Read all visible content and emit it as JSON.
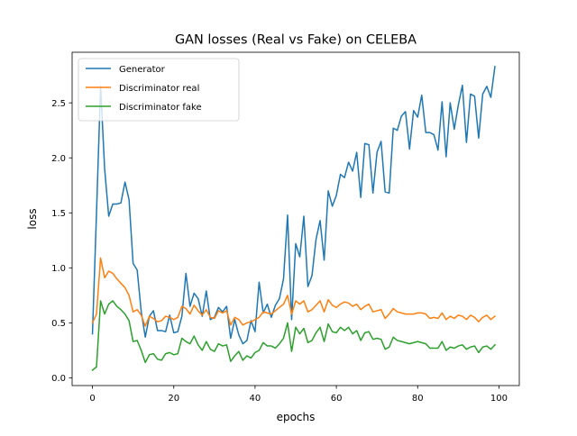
{
  "chart_data": {
    "type": "line",
    "title": "GAN losses (Real vs Fake) on CELEBA",
    "xlabel": "epochs",
    "ylabel": "loss",
    "xlim": [
      -5,
      105
    ],
    "ylim": [
      -0.07,
      2.96
    ],
    "xticks": [
      "0",
      "20",
      "40",
      "60",
      "80",
      "100"
    ],
    "yticks": [
      "0.0",
      "0.5",
      "1.0",
      "1.5",
      "2.0",
      "2.5"
    ],
    "grid": false,
    "legend_position": "top-left",
    "x": [
      0,
      1,
      2,
      3,
      4,
      5,
      6,
      7,
      8,
      9,
      10,
      11,
      12,
      13,
      14,
      15,
      16,
      17,
      18,
      19,
      20,
      21,
      22,
      23,
      24,
      25,
      26,
      27,
      28,
      29,
      30,
      31,
      32,
      33,
      34,
      35,
      36,
      37,
      38,
      39,
      40,
      41,
      42,
      43,
      44,
      45,
      46,
      47,
      48,
      49,
      50,
      51,
      52,
      53,
      54,
      55,
      56,
      57,
      58,
      59,
      60,
      61,
      62,
      63,
      64,
      65,
      66,
      67,
      68,
      69,
      70,
      71,
      72,
      73,
      74,
      75,
      76,
      77,
      78,
      79,
      80,
      81,
      82,
      83,
      84,
      85,
      86,
      87,
      88,
      89,
      90,
      91,
      92,
      93,
      94,
      95,
      96,
      97,
      98,
      99
    ],
    "series": [
      {
        "name": "Generator",
        "color": "#1f77b4",
        "values": [
          0.4,
          1.5,
          2.65,
          1.9,
          1.47,
          1.58,
          1.58,
          1.59,
          1.78,
          1.62,
          1.04,
          0.98,
          0.6,
          0.37,
          0.56,
          0.61,
          0.43,
          0.43,
          0.42,
          0.57,
          0.41,
          0.42,
          0.56,
          0.95,
          0.65,
          0.77,
          0.72,
          0.56,
          0.79,
          0.53,
          0.55,
          0.64,
          0.6,
          0.65,
          0.36,
          0.53,
          0.39,
          0.31,
          0.34,
          0.52,
          0.42,
          0.87,
          0.59,
          0.67,
          0.55,
          0.66,
          0.72,
          0.9,
          1.48,
          0.53,
          1.22,
          1.1,
          1.47,
          0.83,
          0.93,
          1.26,
          1.43,
          1.07,
          1.7,
          1.56,
          1.66,
          1.85,
          1.82,
          1.96,
          1.88,
          2.05,
          1.64,
          2.13,
          2.12,
          1.68,
          2.05,
          2.15,
          1.69,
          1.68,
          2.27,
          2.25,
          2.38,
          2.42,
          2.08,
          2.43,
          2.37,
          2.57,
          2.23,
          2.23,
          2.21,
          2.07,
          2.51,
          2.01,
          2.5,
          2.26,
          2.48,
          2.66,
          2.14,
          2.58,
          2.56,
          2.18,
          2.58,
          2.65,
          2.55,
          2.83
        ]
      },
      {
        "name": "Discriminator real",
        "color": "#ff7f0e",
        "values": [
          0.5,
          0.58,
          1.09,
          0.91,
          0.97,
          0.95,
          0.9,
          0.86,
          0.82,
          0.75,
          0.6,
          0.62,
          0.57,
          0.47,
          0.56,
          0.54,
          0.51,
          0.52,
          0.56,
          0.55,
          0.53,
          0.55,
          0.65,
          0.63,
          0.58,
          0.66,
          0.61,
          0.57,
          0.62,
          0.55,
          0.54,
          0.61,
          0.59,
          0.61,
          0.48,
          0.55,
          0.53,
          0.48,
          0.5,
          0.51,
          0.53,
          0.55,
          0.6,
          0.59,
          0.58,
          0.61,
          0.64,
          0.67,
          0.75,
          0.58,
          0.7,
          0.67,
          0.7,
          0.6,
          0.62,
          0.66,
          0.7,
          0.6,
          0.71,
          0.66,
          0.64,
          0.67,
          0.69,
          0.68,
          0.65,
          0.67,
          0.62,
          0.65,
          0.67,
          0.6,
          0.61,
          0.62,
          0.54,
          0.58,
          0.63,
          0.6,
          0.59,
          0.58,
          0.58,
          0.58,
          0.59,
          0.59,
          0.58,
          0.54,
          0.55,
          0.54,
          0.59,
          0.53,
          0.56,
          0.54,
          0.57,
          0.56,
          0.53,
          0.57,
          0.55,
          0.51,
          0.55,
          0.57,
          0.53,
          0.56
        ]
      },
      {
        "name": "Discriminator fake",
        "color": "#2ca02c",
        "values": [
          0.07,
          0.1,
          0.7,
          0.58,
          0.67,
          0.7,
          0.65,
          0.62,
          0.58,
          0.52,
          0.33,
          0.34,
          0.25,
          0.14,
          0.21,
          0.22,
          0.17,
          0.16,
          0.22,
          0.23,
          0.21,
          0.22,
          0.36,
          0.33,
          0.31,
          0.38,
          0.3,
          0.25,
          0.33,
          0.26,
          0.24,
          0.31,
          0.29,
          0.3,
          0.15,
          0.2,
          0.24,
          0.16,
          0.2,
          0.18,
          0.23,
          0.25,
          0.32,
          0.29,
          0.29,
          0.27,
          0.31,
          0.36,
          0.5,
          0.24,
          0.46,
          0.4,
          0.45,
          0.32,
          0.34,
          0.41,
          0.46,
          0.33,
          0.49,
          0.42,
          0.41,
          0.46,
          0.43,
          0.46,
          0.4,
          0.43,
          0.34,
          0.41,
          0.42,
          0.35,
          0.36,
          0.35,
          0.26,
          0.28,
          0.37,
          0.34,
          0.33,
          0.32,
          0.31,
          0.32,
          0.33,
          0.32,
          0.31,
          0.27,
          0.27,
          0.27,
          0.33,
          0.25,
          0.28,
          0.27,
          0.29,
          0.3,
          0.26,
          0.28,
          0.29,
          0.23,
          0.28,
          0.29,
          0.26,
          0.3
        ]
      }
    ]
  }
}
